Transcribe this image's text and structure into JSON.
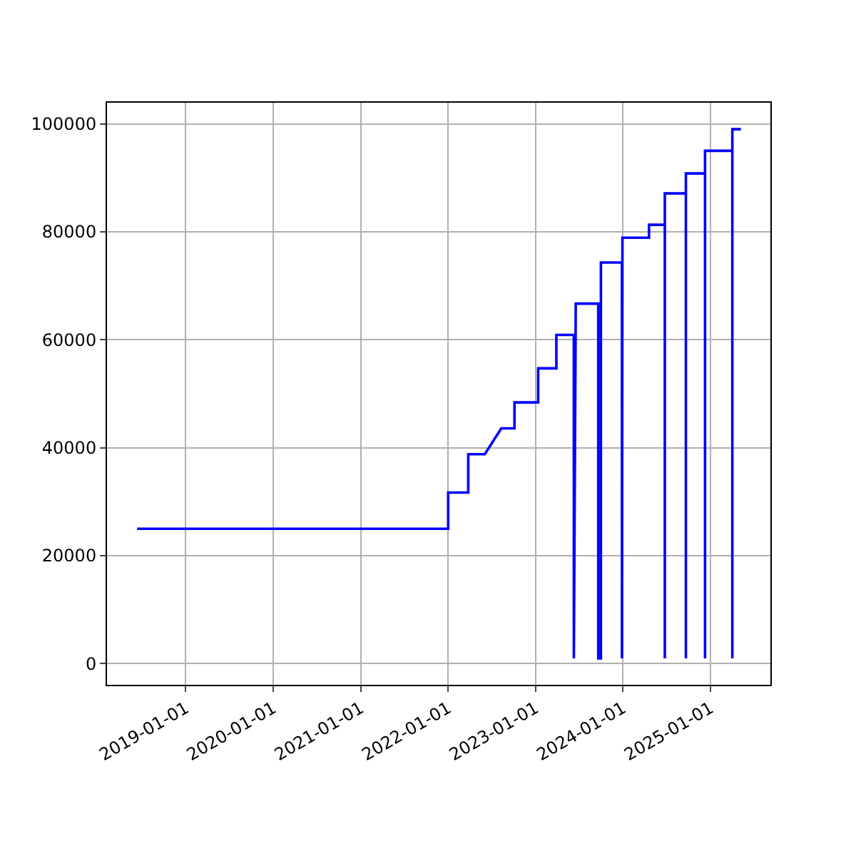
{
  "chart_data": {
    "type": "line",
    "x": [
      "2018-06-12",
      "2022-01-01",
      "2022-01-01",
      "2022-03-26",
      "2022-03-26",
      "2022-06-03",
      "2022-08-11",
      "2022-10-05",
      "2022-10-05",
      "2023-01-12",
      "2023-01-12",
      "2023-03-29",
      "2023-03-29",
      "2023-06-10",
      "2023-06-10",
      "2023-06-18",
      "2023-09-20",
      "2023-09-20",
      "2023-10-01",
      "2023-10-01",
      "2023-12-28",
      "2023-12-28",
      "2023-12-30",
      "2024-04-19",
      "2024-04-19",
      "2024-06-24",
      "2024-06-24",
      "2024-06-24",
      "2024-09-20",
      "2024-09-20",
      "2024-09-20",
      "2024-12-09",
      "2024-12-09",
      "2024-12-09",
      "2025-04-02",
      "2025-04-02",
      "2025-04-02",
      "2025-05-08"
    ],
    "series": [
      {
        "color": "#0000ff",
        "values": [
          25000,
          25000,
          31700,
          31700,
          38800,
          38800,
          43600,
          43600,
          48400,
          48400,
          54700,
          54700,
          60900,
          60900,
          1000,
          66700,
          66700,
          1000,
          1000,
          74300,
          74300,
          1000,
          78900,
          78900,
          81300,
          81300,
          1000,
          87100,
          87100,
          1000,
          90800,
          90800,
          1000,
          95000,
          95000,
          1000,
          99000,
          99000
        ]
      }
    ],
    "xlim": [
      "2018-02-06",
      "2025-09-08"
    ],
    "xticks": [
      {
        "value": "2019-01-01",
        "label": "2019-01-01"
      },
      {
        "value": "2020-01-01",
        "label": "2020-01-01"
      },
      {
        "value": "2021-01-01",
        "label": "2021-01-01"
      },
      {
        "value": "2022-01-01",
        "label": "2022-01-01"
      },
      {
        "value": "2023-01-01",
        "label": "2023-01-01"
      },
      {
        "value": "2024-01-01",
        "label": "2024-01-01"
      },
      {
        "value": "2025-01-01",
        "label": "2025-01-01"
      }
    ],
    "ylim": [
      -3900,
      103900
    ],
    "yticks": [
      0,
      20000,
      40000,
      60000,
      80000,
      100000
    ],
    "grid": true,
    "marker": "none",
    "line_style": "solid"
  }
}
